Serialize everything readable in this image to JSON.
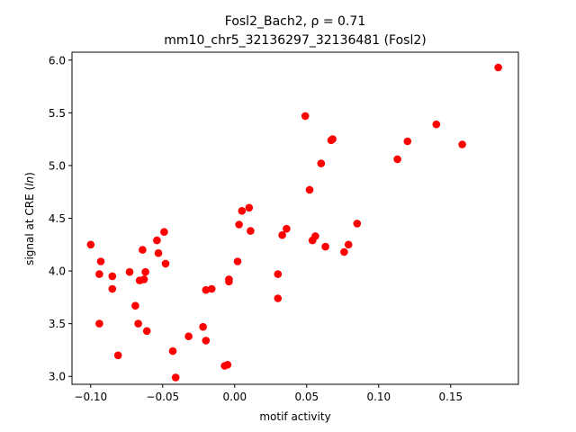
{
  "chart_data": {
    "type": "scatter",
    "title_line1": "Fosl2_Bach2, ρ = 0.71",
    "title_line2": "mm10_chr5_32136297_32136481 (Fosl2)",
    "xlabel": "motif activity",
    "ylabel": "signal at CRE (ln)",
    "xlim": [
      -0.113,
      0.197
    ],
    "ylim": [
      2.925,
      6.075
    ],
    "xticks": [
      -0.1,
      -0.05,
      0.0,
      0.05,
      0.1,
      0.15
    ],
    "xtick_labels": [
      "−0.10",
      "−0.05",
      "0.00",
      "0.05",
      "0.10",
      "0.15"
    ],
    "yticks": [
      3.0,
      3.5,
      4.0,
      4.5,
      5.0,
      5.5,
      6.0
    ],
    "ytick_labels": [
      "3.0",
      "3.5",
      "4.0",
      "4.5",
      "5.0",
      "5.5",
      "6.0"
    ],
    "grid": false,
    "marker_color": "#ff0000",
    "points": [
      [
        -0.1,
        4.25
      ],
      [
        -0.093,
        4.09
      ],
      [
        -0.094,
        3.97
      ],
      [
        -0.094,
        3.5
      ],
      [
        -0.085,
        3.95
      ],
      [
        -0.085,
        3.83
      ],
      [
        -0.081,
        3.2
      ],
      [
        -0.073,
        3.99
      ],
      [
        -0.069,
        3.67
      ],
      [
        -0.067,
        3.5
      ],
      [
        -0.066,
        3.91
      ],
      [
        -0.064,
        4.2
      ],
      [
        -0.063,
        3.92
      ],
      [
        -0.062,
        3.99
      ],
      [
        -0.061,
        3.43
      ],
      [
        -0.054,
        4.29
      ],
      [
        -0.053,
        4.17
      ],
      [
        -0.049,
        4.37
      ],
      [
        -0.048,
        4.07
      ],
      [
        -0.043,
        3.24
      ],
      [
        -0.041,
        2.99
      ],
      [
        -0.032,
        3.38
      ],
      [
        -0.022,
        3.47
      ],
      [
        -0.02,
        3.82
      ],
      [
        -0.02,
        3.34
      ],
      [
        -0.016,
        3.83
      ],
      [
        -0.007,
        3.1
      ],
      [
        -0.005,
        3.11
      ],
      [
        -0.004,
        3.92
      ],
      [
        -0.004,
        3.9
      ],
      [
        0.002,
        4.09
      ],
      [
        0.003,
        4.44
      ],
      [
        0.005,
        4.57
      ],
      [
        0.01,
        4.6
      ],
      [
        0.011,
        4.38
      ],
      [
        0.03,
        3.97
      ],
      [
        0.03,
        3.74
      ],
      [
        0.033,
        4.34
      ],
      [
        0.036,
        4.4
      ],
      [
        0.049,
        5.47
      ],
      [
        0.052,
        4.77
      ],
      [
        0.054,
        4.29
      ],
      [
        0.056,
        4.33
      ],
      [
        0.06,
        5.02
      ],
      [
        0.063,
        4.23
      ],
      [
        0.067,
        5.24
      ],
      [
        0.068,
        5.25
      ],
      [
        0.076,
        4.18
      ],
      [
        0.079,
        4.25
      ],
      [
        0.085,
        4.45
      ],
      [
        0.113,
        5.06
      ],
      [
        0.12,
        5.23
      ],
      [
        0.14,
        5.39
      ],
      [
        0.158,
        5.2
      ],
      [
        0.183,
        5.93
      ]
    ]
  }
}
